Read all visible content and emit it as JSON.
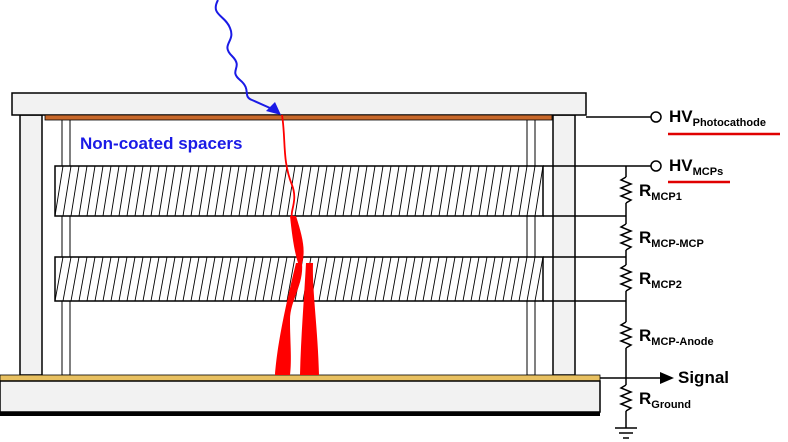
{
  "spacer_label": "Non-coated spacers",
  "terminals": {
    "hv_photocathode": {
      "main": "HV",
      "sub": "Photocathode"
    },
    "hv_mcps": {
      "main": "HV",
      "sub": "MCPs"
    },
    "signal": "Signal"
  },
  "resistors": [
    {
      "main": "R",
      "sub": "MCP1"
    },
    {
      "main": "R",
      "sub": "MCP-MCP"
    },
    {
      "main": "R",
      "sub": "MCP2"
    },
    {
      "main": "R",
      "sub": "MCP-Anode"
    },
    {
      "main": "R",
      "sub": "Ground"
    }
  ],
  "colors": {
    "photon": "#1a1ae6",
    "electron_shower": "#ff0000",
    "photocathode": "#c8682a",
    "anode": "#e8c060",
    "housing": "#f2f2f2",
    "underline": "#e00000"
  }
}
